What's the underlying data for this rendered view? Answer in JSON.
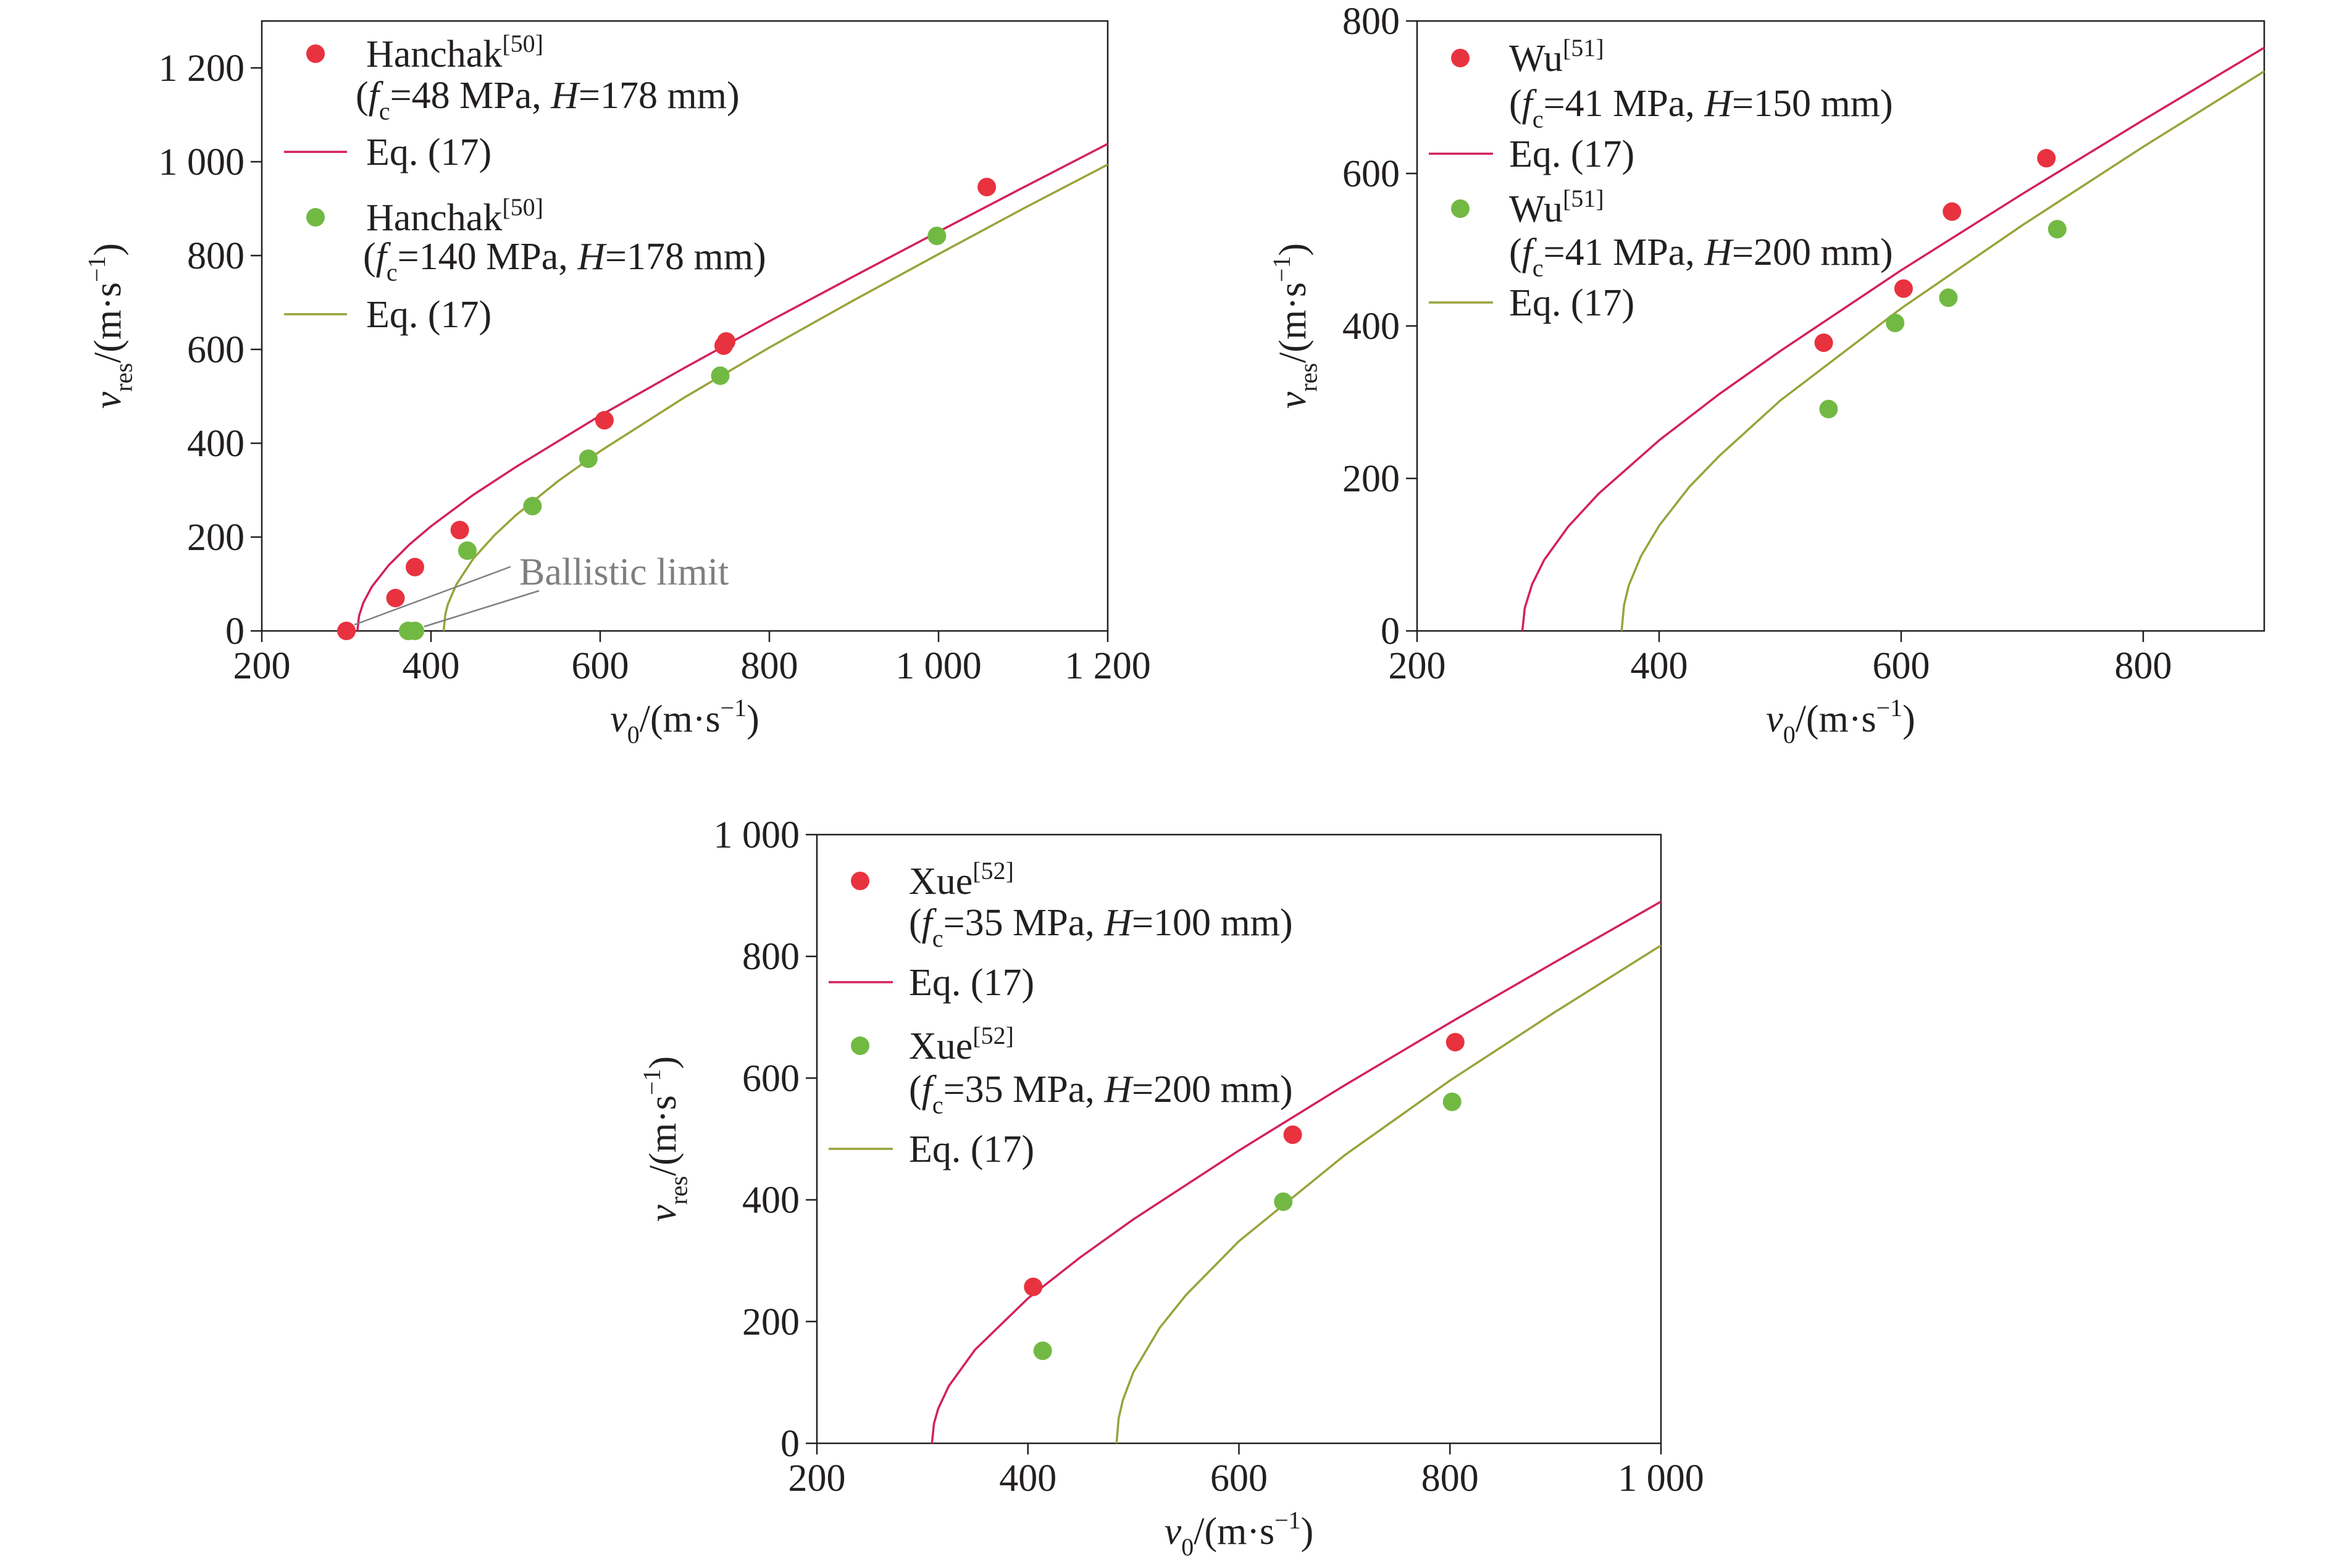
{
  "chart_data": [
    {
      "type": "scatter",
      "xlim": [
        200,
        1200
      ],
      "ylim": [
        0,
        1300
      ],
      "x_ticks": [
        200,
        400,
        600,
        800,
        1000,
        1200
      ],
      "x_tick_labels": [
        "200",
        "400",
        "600",
        "800",
        "1 000",
        "1 200"
      ],
      "y_ticks": [
        0,
        200,
        400,
        600,
        800,
        1000,
        1200
      ],
      "y_tick_labels": [
        "0",
        "200",
        "400",
        "600",
        "800",
        "1 000",
        "1 200"
      ],
      "xlabel": [
        {
          "t": "v",
          "i": true
        },
        {
          "t": "0",
          "sub": true
        },
        {
          "t": "/(m·s"
        },
        {
          "t": "−1",
          "sup": true
        },
        {
          "t": ")"
        }
      ],
      "ylabel": [
        {
          "t": "v",
          "i": true
        },
        {
          "t": "res",
          "sub": true
        },
        {
          "t": "/(m·s"
        },
        {
          "t": "−1",
          "sup": true
        },
        {
          "t": ")"
        }
      ],
      "grid": false,
      "legend": "top-left",
      "series": [
        {
          "name": "Hanchak",
          "ref": "[50]",
          "condition": [
            {
              "t": "("
            },
            {
              "t": "f",
              "i": true
            },
            {
              "t": "c",
              "sub": true
            },
            {
              "t": "=48 MPa, "
            },
            {
              "t": "H",
              "i": true
            },
            {
              "t": "=178 mm)"
            }
          ],
          "marker": "circle",
          "color": "#e8323f",
          "x": [
            300,
            358,
            381,
            434,
            605,
            746,
            749,
            1057
          ],
          "y": [
            0,
            70,
            136,
            215,
            449,
            608,
            617,
            946
          ]
        },
        {
          "name": "Eq. (17)",
          "line": true,
          "color": "#d3215b",
          "x": [
            313,
            315,
            320,
            330,
            350,
            375,
            400,
            450,
            500,
            600,
            700,
            800,
            900,
            1000,
            1100,
            1200
          ],
          "y": [
            0,
            32,
            60,
            94,
            140,
            185,
            223,
            290,
            349,
            459,
            561,
            660,
            756,
            851,
            945,
            1038
          ]
        },
        {
          "name": "Hanchak",
          "ref": "[50]",
          "condition": [
            {
              "t": "("
            },
            {
              "t": "f",
              "i": true
            },
            {
              "t": "c",
              "sub": true
            },
            {
              "t": "=140 MPa, "
            },
            {
              "t": "H",
              "i": true
            },
            {
              "t": "=178 mm)"
            }
          ],
          "marker": "circle",
          "color": "#72b944",
          "x": [
            373,
            381,
            443,
            520,
            586,
            742,
            998
          ],
          "y": [
            0,
            0,
            171,
            266,
            367,
            544,
            842
          ]
        },
        {
          "name": "Eq. (17)",
          "line": true,
          "color": "#99a33a",
          "x": [
            415,
            417,
            420,
            430,
            450,
            475,
            500,
            550,
            600,
            700,
            800,
            900,
            1000,
            1100,
            1200
          ],
          "y": [
            0,
            36,
            57,
            99,
            154,
            204,
            246,
            319,
            383,
            498,
            604,
            705,
            803,
            900,
            994
          ]
        }
      ],
      "annotations": [
        {
          "text": "Ballistic limit",
          "color": "#7f7f7f"
        }
      ]
    },
    {
      "type": "scatter",
      "xlim": [
        200,
        900
      ],
      "ylim": [
        0,
        800
      ],
      "x_ticks": [
        200,
        400,
        600,
        800
      ],
      "x_tick_labels": [
        "200",
        "400",
        "600",
        "800"
      ],
      "y_ticks": [
        0,
        200,
        400,
        600,
        800
      ],
      "y_tick_labels": [
        "0",
        "200",
        "400",
        "600",
        "800"
      ],
      "xlabel": [
        {
          "t": "v",
          "i": true
        },
        {
          "t": "0",
          "sub": true
        },
        {
          "t": "/(m·s"
        },
        {
          "t": "−1",
          "sup": true
        },
        {
          "t": ")"
        }
      ],
      "ylabel": [
        {
          "t": "v",
          "i": true
        },
        {
          "t": "res",
          "sub": true
        },
        {
          "t": "/(m·s"
        },
        {
          "t": "−1",
          "sup": true
        },
        {
          "t": ")"
        }
      ],
      "grid": false,
      "legend": "top-left",
      "series": [
        {
          "name": "Wu",
          "ref": "[51]",
          "condition": [
            {
              "t": "("
            },
            {
              "t": "f",
              "i": true
            },
            {
              "t": "c",
              "sub": true
            },
            {
              "t": "=41 MPa, "
            },
            {
              "t": "H",
              "i": true
            },
            {
              "t": "=150 mm)"
            }
          ],
          "marker": "circle",
          "color": "#e8323f",
          "x": [
            536,
            602,
            642,
            720
          ],
          "y": [
            378,
            449,
            550,
            620
          ]
        },
        {
          "name": "Eq. (17)",
          "line": true,
          "color": "#d3215b",
          "x": [
            287,
            289,
            295,
            305,
            325,
            350,
            400,
            450,
            500,
            600,
            700,
            800,
            900
          ],
          "y": [
            0,
            30,
            61,
            93,
            137,
            180,
            250,
            311,
            367,
            473,
            573,
            670,
            765
          ]
        },
        {
          "name": "Wu",
          "ref": "[51]",
          "condition": [
            {
              "t": "("
            },
            {
              "t": "f",
              "i": true
            },
            {
              "t": "c",
              "sub": true
            },
            {
              "t": "=41 MPa, "
            },
            {
              "t": "H",
              "i": true
            },
            {
              "t": "=200 mm)"
            }
          ],
          "marker": "circle",
          "color": "#72b944",
          "x": [
            540,
            595,
            639,
            729
          ],
          "y": [
            291,
            404,
            437,
            527
          ]
        },
        {
          "name": "Eq. (17)",
          "line": true,
          "color": "#99a33a",
          "x": [
            369,
            371,
            375,
            385,
            400,
            425,
            450,
            500,
            600,
            700,
            800,
            900
          ],
          "y": [
            0,
            34,
            60,
            98,
            138,
            189,
            230,
            302,
            423,
            532,
            635,
            734
          ]
        }
      ]
    },
    {
      "type": "scatter",
      "xlim": [
        200,
        1000
      ],
      "ylim": [
        0,
        1000
      ],
      "x_ticks": [
        200,
        400,
        600,
        800,
        1000
      ],
      "x_tick_labels": [
        "200",
        "400",
        "600",
        "800",
        "1 000"
      ],
      "y_ticks": [
        0,
        200,
        400,
        600,
        800,
        1000
      ],
      "y_tick_labels": [
        "0",
        "200",
        "400",
        "600",
        "800",
        "1 000"
      ],
      "xlabel": [
        {
          "t": "v",
          "i": true
        },
        {
          "t": "0",
          "sub": true
        },
        {
          "t": "/(m·s"
        },
        {
          "t": "−1",
          "sup": true
        },
        {
          "t": ")"
        }
      ],
      "ylabel": [
        {
          "t": "v",
          "i": true
        },
        {
          "t": "res",
          "sub": true
        },
        {
          "t": "/(m·s"
        },
        {
          "t": "−1",
          "sup": true
        },
        {
          "t": ")"
        }
      ],
      "grid": false,
      "legend": "top-left",
      "series": [
        {
          "name": "Xue",
          "ref": "[52]",
          "condition": [
            {
              "t": "("
            },
            {
              "t": "f",
              "i": true
            },
            {
              "t": "c",
              "sub": true
            },
            {
              "t": "=35 MPa, "
            },
            {
              "t": "H",
              "i": true
            },
            {
              "t": "=100 mm)"
            }
          ],
          "marker": "circle",
          "color": "#e8323f",
          "x": [
            405,
            651,
            805
          ],
          "y": [
            257,
            507,
            659
          ]
        },
        {
          "name": "Eq. (17)",
          "line": true,
          "color": "#d3215b",
          "x": [
            309,
            311,
            315,
            325,
            350,
            400,
            450,
            500,
            600,
            700,
            800,
            900,
            1000
          ],
          "y": [
            0,
            33,
            57,
            94,
            154,
            238,
            306,
            368,
            481,
            588,
            691,
            791,
            890
          ]
        },
        {
          "name": "Xue",
          "ref": "[52]",
          "condition": [
            {
              "t": "("
            },
            {
              "t": "f",
              "i": true
            },
            {
              "t": "c",
              "sub": true
            },
            {
              "t": "=35 MPa, "
            },
            {
              "t": "H",
              "i": true
            },
            {
              "t": "=200 mm)"
            }
          ],
          "marker": "circle",
          "color": "#72b944",
          "x": [
            414,
            642,
            802
          ],
          "y": [
            152,
            397,
            561
          ]
        },
        {
          "name": "Eq. (17)",
          "line": true,
          "color": "#99a33a",
          "x": [
            484,
            486,
            490,
            500,
            525,
            550,
            600,
            700,
            800,
            900,
            1000
          ],
          "y": [
            0,
            41,
            71,
            117,
            190,
            244,
            332,
            473,
            596,
            709,
            818
          ]
        }
      ]
    }
  ]
}
